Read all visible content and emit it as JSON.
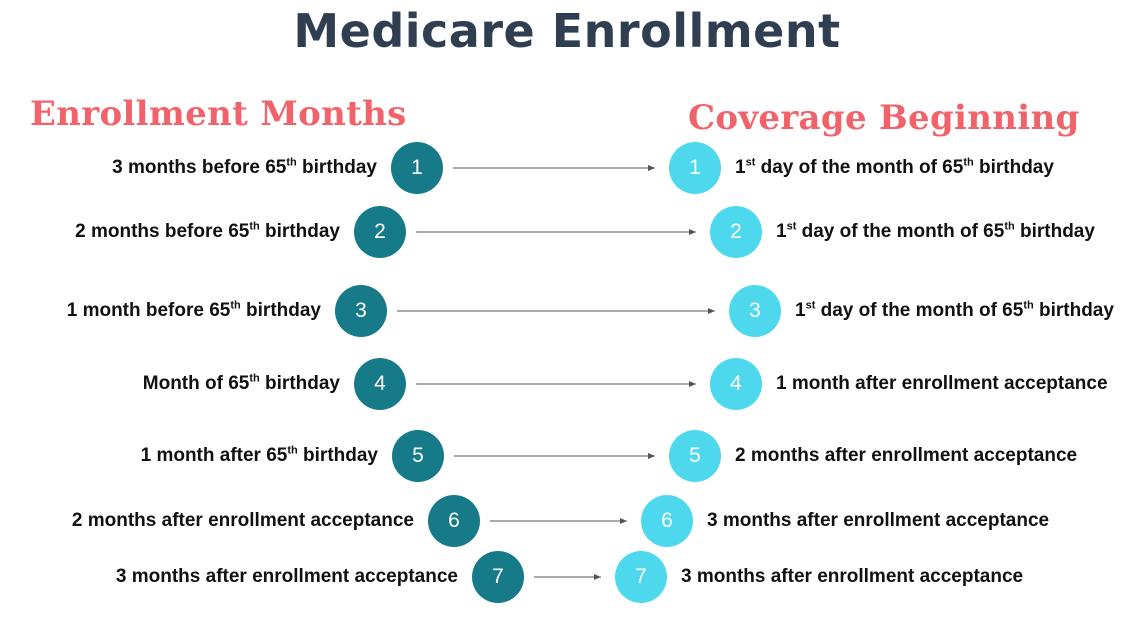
{
  "title": "Medicare Enrollment",
  "headings": {
    "left": "Enrollment Months",
    "right": "Coverage Beginning"
  },
  "colors": {
    "title": "#2f3e50",
    "heading": "#f1636b",
    "left_circle": "#167a88",
    "right_circle": "#4ed8ee",
    "arrow": "#555555",
    "text": "#111111"
  },
  "steps": [
    {
      "number": "1",
      "enrollment": "3 months before 65th birthday",
      "coverage": "1st day of the month of 65th birthday"
    },
    {
      "number": "2",
      "enrollment": "2 months before 65th birthday",
      "coverage": "1st day of the month of 65th birthday"
    },
    {
      "number": "3",
      "enrollment": "1 month before 65th birthday",
      "coverage": "1st day of the month of 65th birthday"
    },
    {
      "number": "4",
      "enrollment": "Month of 65th birthday",
      "coverage": "1 month after enrollment acceptance"
    },
    {
      "number": "5",
      "enrollment": "1 month after 65th birthday",
      "coverage": "2 months after enrollment acceptance"
    },
    {
      "number": "6",
      "enrollment": "2 months after enrollment acceptance",
      "coverage": "3 months after enrollment acceptance"
    },
    {
      "number": "7",
      "enrollment": "3 months after enrollment acceptance",
      "coverage": "3 months after enrollment acceptance"
    }
  ]
}
